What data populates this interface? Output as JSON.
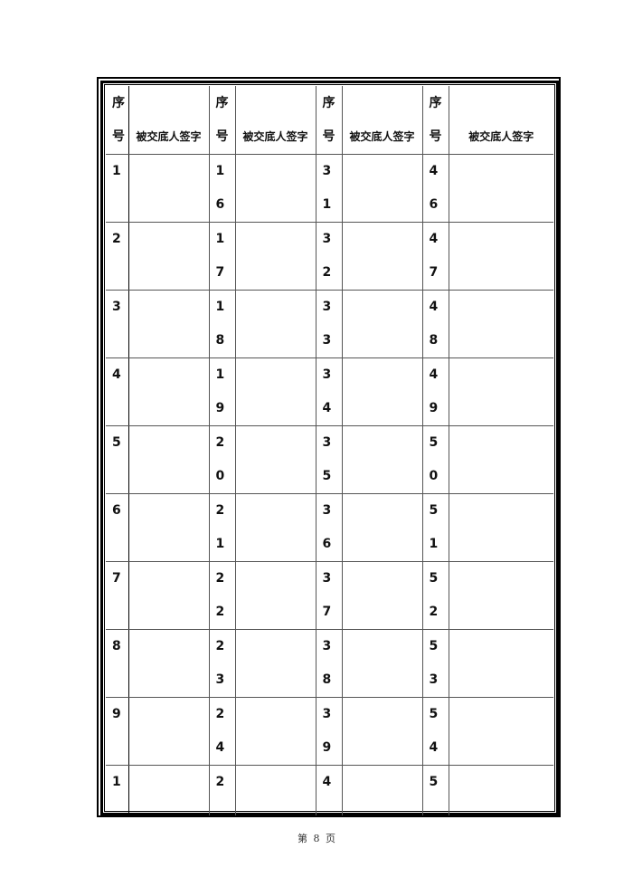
{
  "table": {
    "header": {
      "seq": "序号",
      "signature": "被交底人签字"
    },
    "rows": [
      [
        "1",
        "16",
        "31",
        "46"
      ],
      [
        "2",
        "17",
        "32",
        "47"
      ],
      [
        "3",
        "18",
        "33",
        "48"
      ],
      [
        "4",
        "19",
        "34",
        "49"
      ],
      [
        "5",
        "20",
        "35",
        "50"
      ],
      [
        "6",
        "21",
        "36",
        "51"
      ],
      [
        "7",
        "22",
        "37",
        "52"
      ],
      [
        "8",
        "23",
        "38",
        "53"
      ],
      [
        "9",
        "24",
        "39",
        "54"
      ],
      [
        "1",
        "2",
        "4",
        "5"
      ]
    ]
  },
  "footer": {
    "page_label": "第 8 页"
  }
}
